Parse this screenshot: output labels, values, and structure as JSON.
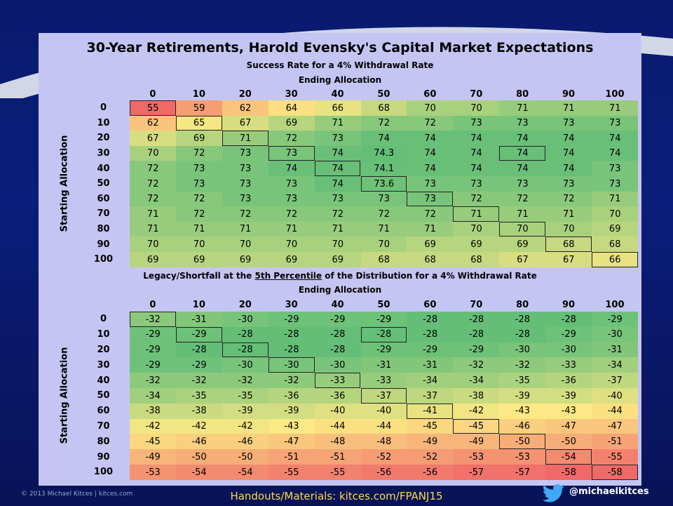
{
  "title": "30-Year Retirements, Harold Evensky's Capital Market Expectations",
  "tables": [
    {
      "subtitle": "Success Rate for a 4% Withdrawal Rate",
      "column_axis": "Ending Allocation",
      "row_axis": "Starting Allocation",
      "columns": [
        0,
        10,
        20,
        30,
        40,
        50,
        60,
        70,
        80,
        90,
        100
      ],
      "rows": [
        {
          "label": 0,
          "values": [
            55,
            59,
            62,
            64,
            66,
            68,
            70,
            70,
            71,
            71,
            71
          ]
        },
        {
          "label": 10,
          "values": [
            62,
            65,
            67,
            69,
            71,
            72,
            72,
            73,
            73,
            73,
            73
          ]
        },
        {
          "label": 20,
          "values": [
            67,
            69,
            71,
            72,
            73,
            74,
            74,
            74,
            74,
            74,
            74
          ]
        },
        {
          "label": 30,
          "values": [
            70,
            72,
            73,
            73,
            74,
            74.3,
            74,
            74,
            74,
            74,
            74
          ]
        },
        {
          "label": 40,
          "values": [
            72,
            73,
            73,
            74,
            74,
            74.1,
            74,
            74,
            74,
            74,
            73
          ]
        },
        {
          "label": 50,
          "values": [
            72,
            73,
            73,
            73,
            74,
            73.6,
            73,
            73,
            73,
            73,
            73
          ]
        },
        {
          "label": 60,
          "values": [
            72,
            72,
            73,
            73,
            73,
            73,
            73,
            72,
            72,
            72,
            71
          ]
        },
        {
          "label": 70,
          "values": [
            71,
            72,
            72,
            72,
            72,
            72,
            72,
            71,
            71,
            71,
            70
          ]
        },
        {
          "label": 80,
          "values": [
            71,
            71,
            71,
            71,
            71,
            71,
            71,
            70,
            70,
            70,
            69
          ]
        },
        {
          "label": 90,
          "values": [
            70,
            70,
            70,
            70,
            70,
            70,
            69,
            69,
            69,
            68,
            68
          ]
        },
        {
          "label": 100,
          "values": [
            69,
            69,
            69,
            69,
            69,
            68,
            68,
            68,
            67,
            67,
            66
          ]
        }
      ]
    },
    {
      "subtitle_parts": [
        "Legacy/Shortfall at the ",
        "5th Percentile",
        " of the Distribution for a 4% Withdrawal Rate"
      ],
      "column_axis": "Ending Allocation",
      "row_axis": "Starting Allocation",
      "columns": [
        0,
        10,
        20,
        30,
        40,
        50,
        60,
        70,
        80,
        90,
        100
      ],
      "rows": [
        {
          "label": 0,
          "values": [
            -32,
            -31,
            -30,
            -29,
            -29,
            -29,
            -28,
            -28,
            -28,
            -28,
            -29
          ]
        },
        {
          "label": 10,
          "values": [
            -29,
            -29,
            -28,
            -28,
            -28,
            -28,
            -28,
            -28,
            -28,
            -29,
            -30
          ]
        },
        {
          "label": 20,
          "values": [
            -29,
            -28,
            -28,
            -28,
            -28,
            -29,
            -29,
            -29,
            -30,
            -30,
            -31
          ]
        },
        {
          "label": 30,
          "values": [
            -29,
            -29,
            -30,
            -30,
            -30,
            -31,
            -31,
            -32,
            -32,
            -33,
            -34
          ]
        },
        {
          "label": 40,
          "values": [
            -32,
            -32,
            -32,
            -32,
            -33,
            -33,
            -34,
            -34,
            -35,
            -36,
            -37
          ]
        },
        {
          "label": 50,
          "values": [
            -34,
            -35,
            -35,
            -36,
            -36,
            -37,
            -37,
            -38,
            -39,
            -39,
            -40
          ]
        },
        {
          "label": 60,
          "values": [
            -38,
            -38,
            -39,
            -39,
            -40,
            -40,
            -41,
            -42,
            -43,
            -43,
            -44
          ]
        },
        {
          "label": 70,
          "values": [
            -42,
            -42,
            -42,
            -43,
            -44,
            -44,
            -45,
            -45,
            -46,
            -47,
            -47
          ]
        },
        {
          "label": 80,
          "values": [
            -45,
            -46,
            -46,
            -47,
            -48,
            -48,
            -49,
            -49,
            -50,
            -50,
            -51
          ]
        },
        {
          "label": 90,
          "values": [
            -49,
            -50,
            -50,
            -51,
            -51,
            -52,
            -52,
            -53,
            -53,
            -54,
            -55
          ]
        },
        {
          "label": 100,
          "values": [
            -53,
            -54,
            -54,
            -55,
            -55,
            -56,
            -56,
            -57,
            -57,
            -58,
            -58
          ]
        }
      ]
    }
  ],
  "footer": {
    "copyright": "© 2013 Michael Kitces | kitces.com",
    "handouts": "Handouts/Materials: kitces.com/FPANJ15",
    "twitter": "@michaelkitces"
  }
}
